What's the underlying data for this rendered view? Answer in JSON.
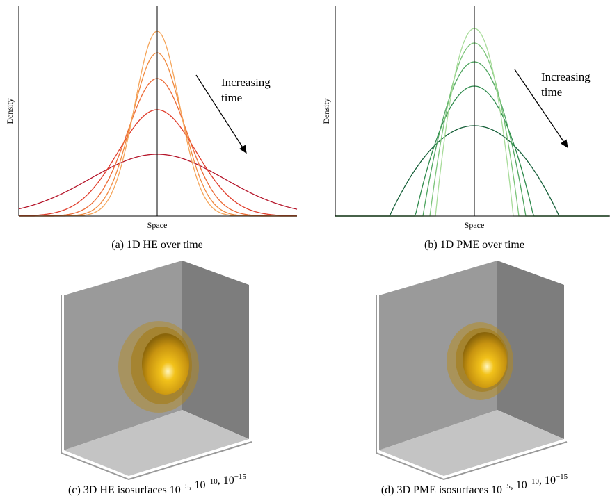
{
  "panels": [
    {
      "y_label": "Density",
      "x_label": "Space",
      "annotation": [
        "Increasing",
        "time"
      ],
      "caption": "(a) 1D HE over time"
    },
    {
      "y_label": "Density",
      "x_label": "Space",
      "annotation": [
        "Increasing",
        "time"
      ],
      "caption": "(b) 1D PME over time"
    },
    {
      "caption": "(c) 3D HE isosurfaces",
      "terms": [
        {
          "base": "10",
          "exp": "−5"
        },
        {
          "base": "10",
          "exp": "−10"
        },
        {
          "base": "10",
          "exp": "−15"
        }
      ],
      "separator": ","
    },
    {
      "caption": "(d) 3D PME isosurfaces",
      "terms": [
        {
          "base": "10",
          "exp": "−5"
        },
        {
          "base": "10",
          "exp": "−10"
        },
        {
          "base": "10",
          "exp": "−15"
        }
      ],
      "separator": ","
    }
  ]
}
